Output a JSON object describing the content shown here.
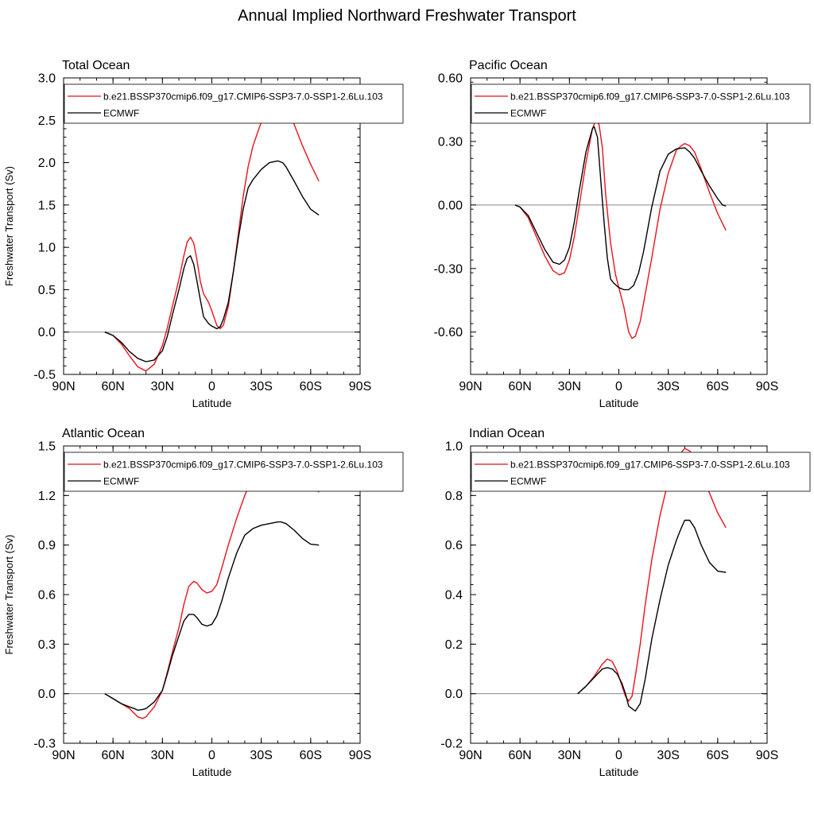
{
  "figure_title": "Annual Implied Northward Freshwater Transport",
  "colors": {
    "model": "#e8121a",
    "obs": "#000000",
    "zero_line": "#888888"
  },
  "chart_data": [
    {
      "type": "line",
      "title": "Total Ocean",
      "xlabel": "Latitude",
      "ylabel": "Freshwater Transport (Sv)",
      "xlim": [
        -90,
        90
      ],
      "ylim": [
        -0.5,
        3.0
      ],
      "x_ticks": [
        {
          "value": -90,
          "label": "90N"
        },
        {
          "value": -60,
          "label": "60N"
        },
        {
          "value": -30,
          "label": "30N"
        },
        {
          "value": 0,
          "label": "0"
        },
        {
          "value": 30,
          "label": "30S"
        },
        {
          "value": 60,
          "label": "60S"
        },
        {
          "value": 90,
          "label": "90S"
        }
      ],
      "y_ticks": [
        {
          "value": -0.5,
          "label": "-0.5"
        },
        {
          "value": 0.0,
          "label": "0.0"
        },
        {
          "value": 0.5,
          "label": "0.5"
        },
        {
          "value": 1.0,
          "label": "1.0"
        },
        {
          "value": 1.5,
          "label": "1.5"
        },
        {
          "value": 2.0,
          "label": "2.0"
        },
        {
          "value": 2.5,
          "label": "2.5"
        },
        {
          "value": 3.0,
          "label": "3.0"
        }
      ],
      "legend": [
        "b.e21.BSSP370cmip6.f09_g17.CMIP6-SSP3-7.0-SSP1-2.6Lu.103",
        "ECMWF"
      ],
      "series": [
        {
          "name": "b.e21.BSSP370cmip6.f09_g17.CMIP6-SSP3-7.0-SSP1-2.6Lu.103",
          "color": "#e8121a",
          "x": [
            -65,
            -60,
            -55,
            -50,
            -45,
            -40,
            -35,
            -30,
            -27,
            -24,
            -20,
            -17,
            -15,
            -13,
            -11,
            -9,
            -7,
            -5,
            -2,
            0,
            3,
            5,
            7,
            10,
            13,
            16,
            19,
            22,
            25,
            30,
            35,
            40,
            45,
            50,
            55,
            60,
            65
          ],
          "y": [
            0.0,
            -0.04,
            -0.14,
            -0.28,
            -0.41,
            -0.46,
            -0.38,
            -0.16,
            0.05,
            0.3,
            0.62,
            0.9,
            1.06,
            1.12,
            1.05,
            0.85,
            0.6,
            0.45,
            0.35,
            0.25,
            0.08,
            0.04,
            0.08,
            0.3,
            0.7,
            1.15,
            1.6,
            1.95,
            2.2,
            2.48,
            2.65,
            2.72,
            2.65,
            2.45,
            2.2,
            1.98,
            1.78
          ]
        },
        {
          "name": "ECMWF",
          "color": "#000000",
          "x": [
            -65,
            -60,
            -55,
            -50,
            -45,
            -40,
            -35,
            -30,
            -27,
            -24,
            -20,
            -17,
            -15,
            -13,
            -11,
            -9,
            -7,
            -5,
            -2,
            0,
            3,
            5,
            7,
            10,
            13,
            16,
            19,
            22,
            25,
            30,
            35,
            40,
            43,
            45,
            50,
            55,
            60,
            65
          ],
          "y": [
            0.0,
            -0.04,
            -0.12,
            -0.23,
            -0.31,
            -0.35,
            -0.33,
            -0.22,
            -0.05,
            0.2,
            0.5,
            0.75,
            0.87,
            0.9,
            0.8,
            0.6,
            0.38,
            0.18,
            0.1,
            0.07,
            0.04,
            0.06,
            0.15,
            0.35,
            0.7,
            1.1,
            1.45,
            1.7,
            1.8,
            1.92,
            2.0,
            2.02,
            2.0,
            1.95,
            1.78,
            1.6,
            1.45,
            1.38
          ]
        }
      ]
    },
    {
      "type": "line",
      "title": "Pacific Ocean",
      "xlabel": "Latitude",
      "ylabel": "",
      "xlim": [
        -90,
        90
      ],
      "ylim": [
        -0.8,
        0.6
      ],
      "x_ticks": [
        {
          "value": -90,
          "label": "90N"
        },
        {
          "value": -60,
          "label": "60N"
        },
        {
          "value": -30,
          "label": "30N"
        },
        {
          "value": 0,
          "label": "0"
        },
        {
          "value": 30,
          "label": "30S"
        },
        {
          "value": 60,
          "label": "60S"
        },
        {
          "value": 90,
          "label": "90S"
        }
      ],
      "y_ticks": [
        {
          "value": -0.6,
          "label": "-0.60"
        },
        {
          "value": -0.3,
          "label": "-0.30"
        },
        {
          "value": 0.0,
          "label": "0.00"
        },
        {
          "value": 0.3,
          "label": "0.30"
        },
        {
          "value": 0.6,
          "label": "0.60"
        }
      ],
      "legend": [
        "b.e21.BSSP370cmip6.f09_g17.CMIP6-SSP3-7.0-SSP1-2.6Lu.103",
        "ECMWF"
      ],
      "series": [
        {
          "name": "b.e21.BSSP370cmip6.f09_g17.CMIP6-SSP3-7.0-SSP1-2.6Lu.103",
          "color": "#e8121a",
          "x": [
            -63,
            -60,
            -55,
            -50,
            -45,
            -40,
            -36,
            -33,
            -30,
            -27,
            -24,
            -20,
            -16,
            -14,
            -12,
            -10,
            -8,
            -5,
            -2,
            0,
            3,
            6,
            8,
            10,
            13,
            16,
            20,
            25,
            30,
            35,
            38,
            40,
            43,
            46,
            50,
            55,
            60,
            65
          ],
          "y": [
            0.0,
            -0.01,
            -0.06,
            -0.15,
            -0.24,
            -0.31,
            -0.33,
            -0.32,
            -0.26,
            -0.15,
            0.0,
            0.2,
            0.36,
            0.4,
            0.38,
            0.27,
            0.05,
            -0.18,
            -0.33,
            -0.39,
            -0.48,
            -0.6,
            -0.63,
            -0.62,
            -0.55,
            -0.42,
            -0.25,
            -0.02,
            0.15,
            0.26,
            0.28,
            0.29,
            0.28,
            0.25,
            0.17,
            0.06,
            -0.04,
            -0.12
          ]
        },
        {
          "name": "ECMWF",
          "color": "#000000",
          "x": [
            -63,
            -60,
            -55,
            -50,
            -45,
            -40,
            -36,
            -33,
            -30,
            -27,
            -24,
            -20,
            -16,
            -15,
            -13,
            -11,
            -9,
            -7,
            -5,
            -3,
            0,
            3,
            6,
            9,
            12,
            15,
            20,
            25,
            30,
            35,
            40,
            43,
            46,
            50,
            55,
            60,
            63,
            65
          ],
          "y": [
            0.0,
            -0.01,
            -0.05,
            -0.13,
            -0.21,
            -0.27,
            -0.28,
            -0.26,
            -0.2,
            -0.08,
            0.07,
            0.25,
            0.36,
            0.37,
            0.32,
            0.12,
            -0.08,
            -0.25,
            -0.35,
            -0.37,
            -0.39,
            -0.4,
            -0.4,
            -0.38,
            -0.32,
            -0.22,
            -0.01,
            0.16,
            0.24,
            0.265,
            0.27,
            0.25,
            0.22,
            0.16,
            0.09,
            0.03,
            0.0,
            -0.005
          ]
        }
      ]
    },
    {
      "type": "line",
      "title": "Atlantic Ocean",
      "xlabel": "Latitude",
      "ylabel": "Freshwater Transport (Sv)",
      "xlim": [
        -90,
        90
      ],
      "ylim": [
        -0.3,
        1.5
      ],
      "x_ticks": [
        {
          "value": -90,
          "label": "90N"
        },
        {
          "value": -60,
          "label": "60N"
        },
        {
          "value": -30,
          "label": "30N"
        },
        {
          "value": 0,
          "label": "0"
        },
        {
          "value": 30,
          "label": "30S"
        },
        {
          "value": 60,
          "label": "60S"
        },
        {
          "value": 90,
          "label": "90S"
        }
      ],
      "y_ticks": [
        {
          "value": -0.3,
          "label": "-0.3"
        },
        {
          "value": 0.0,
          "label": "0.0"
        },
        {
          "value": 0.3,
          "label": "0.3"
        },
        {
          "value": 0.6,
          "label": "0.6"
        },
        {
          "value": 0.9,
          "label": "0.9"
        },
        {
          "value": 1.2,
          "label": "1.2"
        },
        {
          "value": 1.5,
          "label": "1.5"
        }
      ],
      "legend": [
        "b.e21.BSSP370cmip6.f09_g17.CMIP6-SSP3-7.0-SSP1-2.6Lu.103",
        "ECMWF"
      ],
      "series": [
        {
          "name": "b.e21.BSSP370cmip6.f09_g17.CMIP6-SSP3-7.0-SSP1-2.6Lu.103",
          "color": "#e8121a",
          "x": [
            -65,
            -60,
            -55,
            -50,
            -47,
            -45,
            -42,
            -40,
            -35,
            -30,
            -27,
            -24,
            -20,
            -17,
            -14,
            -11,
            -9,
            -6,
            -3,
            0,
            3,
            6,
            10,
            15,
            20,
            25,
            30,
            35,
            40,
            42,
            45,
            50,
            55,
            60,
            65
          ],
          "y": [
            0.0,
            -0.03,
            -0.06,
            -0.09,
            -0.12,
            -0.14,
            -0.15,
            -0.14,
            -0.08,
            0.02,
            0.13,
            0.25,
            0.4,
            0.54,
            0.65,
            0.68,
            0.67,
            0.63,
            0.61,
            0.62,
            0.66,
            0.76,
            0.9,
            1.06,
            1.2,
            1.32,
            1.4,
            1.43,
            1.44,
            1.44,
            1.43,
            1.39,
            1.33,
            1.27,
            1.22
          ]
        },
        {
          "name": "ECMWF",
          "color": "#000000",
          "x": [
            -65,
            -60,
            -55,
            -50,
            -47,
            -45,
            -42,
            -40,
            -35,
            -30,
            -27,
            -24,
            -20,
            -17,
            -14,
            -11,
            -9,
            -6,
            -3,
            0,
            3,
            6,
            10,
            15,
            20,
            25,
            30,
            35,
            40,
            42,
            45,
            50,
            55,
            60,
            65
          ],
          "y": [
            0.0,
            -0.03,
            -0.06,
            -0.08,
            -0.09,
            -0.1,
            -0.095,
            -0.09,
            -0.05,
            0.02,
            0.12,
            0.23,
            0.35,
            0.44,
            0.48,
            0.48,
            0.46,
            0.42,
            0.41,
            0.42,
            0.47,
            0.56,
            0.7,
            0.85,
            0.96,
            1.0,
            1.02,
            1.03,
            1.04,
            1.04,
            1.03,
            0.99,
            0.94,
            0.905,
            0.9
          ]
        }
      ]
    },
    {
      "type": "line",
      "title": "Indian Ocean",
      "xlabel": "Latitude",
      "ylabel": "",
      "xlim": [
        -90,
        90
      ],
      "ylim": [
        -0.2,
        1.0
      ],
      "x_ticks": [
        {
          "value": -90,
          "label": "90N"
        },
        {
          "value": -60,
          "label": "60N"
        },
        {
          "value": -30,
          "label": "30N"
        },
        {
          "value": 0,
          "label": "0"
        },
        {
          "value": 30,
          "label": "30S"
        },
        {
          "value": 60,
          "label": "60S"
        },
        {
          "value": 90,
          "label": "90S"
        }
      ],
      "y_ticks": [
        {
          "value": -0.2,
          "label": "-0.2"
        },
        {
          "value": 0.0,
          "label": "0.0"
        },
        {
          "value": 0.2,
          "label": "0.2"
        },
        {
          "value": 0.4,
          "label": "0.4"
        },
        {
          "value": 0.6,
          "label": "0.6"
        },
        {
          "value": 0.8,
          "label": "0.8"
        },
        {
          "value": 1.0,
          "label": "1.0"
        }
      ],
      "legend": [
        "b.e21.BSSP370cmip6.f09_g17.CMIP6-SSP3-7.0-SSP1-2.6Lu.103",
        "ECMWF"
      ],
      "series": [
        {
          "name": "b.e21.BSSP370cmip6.f09_g17.CMIP6-SSP3-7.0-SSP1-2.6Lu.103",
          "color": "#e8121a",
          "x": [
            -25,
            -20,
            -15,
            -10,
            -7,
            -4,
            -1,
            2,
            4,
            6,
            8,
            10,
            13,
            16,
            20,
            25,
            30,
            35,
            40,
            43,
            46,
            50,
            55,
            60,
            65
          ],
          "y": [
            0.0,
            0.03,
            0.07,
            0.12,
            0.14,
            0.13,
            0.09,
            0.03,
            -0.01,
            -0.03,
            -0.01,
            0.07,
            0.2,
            0.36,
            0.54,
            0.72,
            0.86,
            0.95,
            0.99,
            0.98,
            0.95,
            0.89,
            0.81,
            0.73,
            0.67
          ]
        },
        {
          "name": "ECMWF",
          "color": "#000000",
          "x": [
            -25,
            -20,
            -15,
            -10,
            -7,
            -4,
            -1,
            2,
            4,
            6,
            8,
            10,
            13,
            16,
            20,
            25,
            30,
            35,
            38,
            40,
            43,
            46,
            50,
            55,
            60,
            65
          ],
          "y": [
            0.0,
            0.03,
            0.065,
            0.1,
            0.105,
            0.1,
            0.08,
            0.04,
            0.0,
            -0.05,
            -0.06,
            -0.07,
            -0.04,
            0.06,
            0.22,
            0.38,
            0.52,
            0.62,
            0.67,
            0.7,
            0.7,
            0.67,
            0.6,
            0.53,
            0.495,
            0.49
          ]
        }
      ]
    }
  ]
}
